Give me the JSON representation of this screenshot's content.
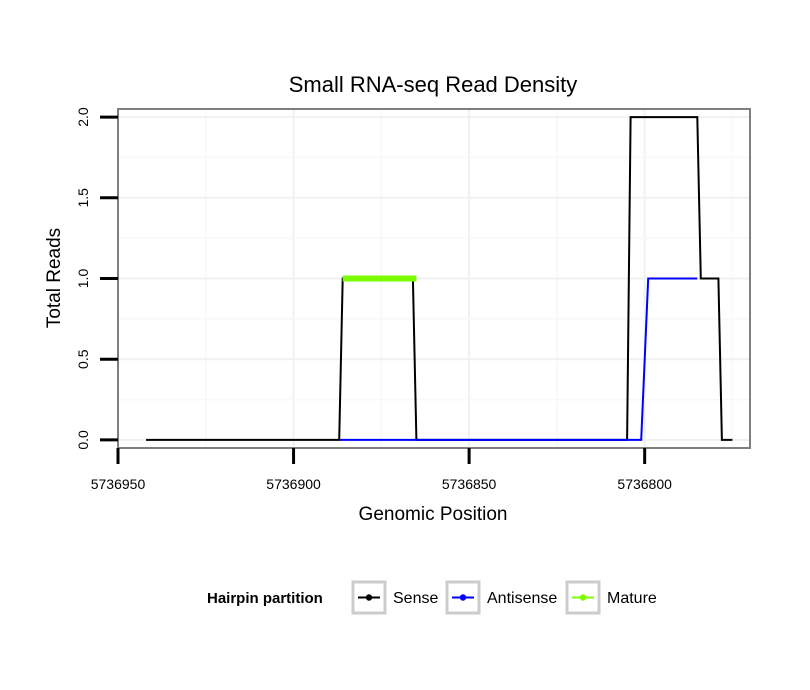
{
  "chart_data": {
    "type": "line",
    "title": "Small RNA-seq Read Density",
    "xlabel": "Genomic Position",
    "ylabel": "Total Reads",
    "x_reversed": true,
    "xlim": [
      5736950,
      5736770
    ],
    "ylim": [
      -0.05,
      2.05
    ],
    "x_ticks": [
      5736950,
      5736900,
      5736850,
      5736800
    ],
    "x_tick_labels": [
      "5736950",
      "5736900",
      "5736850",
      "5736800"
    ],
    "y_ticks": [
      0,
      0.5,
      1,
      1.5,
      2
    ],
    "y_tick_labels": [
      "0.0",
      "0.5",
      "1.0",
      "1.5",
      "2.0"
    ],
    "grid": true,
    "legend_position": "bottom",
    "legend_title": "Hairpin partition",
    "series": [
      {
        "name": "Sense",
        "color": "#000000",
        "points": [
          [
            5736942,
            0
          ],
          [
            5736887,
            0
          ],
          [
            5736886,
            1
          ],
          [
            5736866,
            1
          ],
          [
            5736865,
            0
          ],
          [
            5736805,
            0
          ],
          [
            5736804,
            2
          ],
          [
            5736785,
            2
          ],
          [
            5736784,
            1
          ],
          [
            5736779,
            1
          ],
          [
            5736778,
            0
          ],
          [
            5736775,
            0
          ]
        ]
      },
      {
        "name": "Antisense",
        "color": "#0000ff",
        "points": [
          [
            5736887,
            0
          ],
          [
            5736865,
            0
          ],
          [
            5736801,
            0
          ],
          [
            5736799,
            1
          ],
          [
            5736785,
            1
          ]
        ]
      },
      {
        "name": "Mature",
        "color": "#7cfc00",
        "points": [
          [
            5736886,
            1
          ],
          [
            5736865,
            1
          ]
        ]
      }
    ]
  }
}
